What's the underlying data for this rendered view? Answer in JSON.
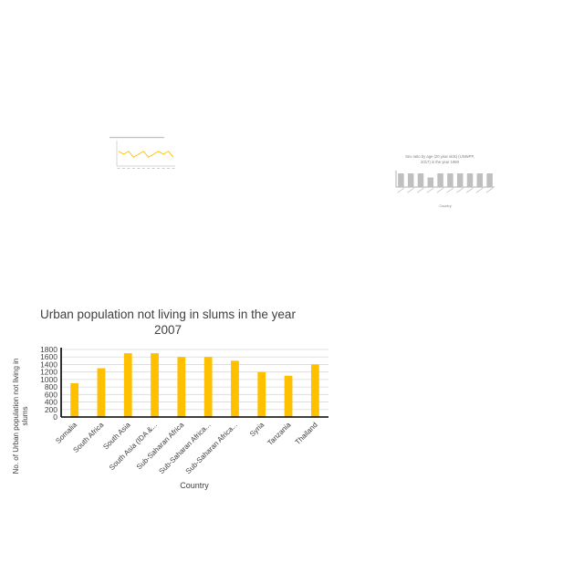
{
  "chart_data": [
    {
      "id": "main",
      "type": "bar",
      "title": "Urban population not living in slums in the year 2007",
      "title_lines": [
        "Urban population not living in slums in the year",
        "2007"
      ],
      "xlabel": "Country",
      "ylabel_lines": [
        "No. of Urban population not living in",
        "slums"
      ],
      "categories": [
        "Somalia",
        "South Africa",
        "South Asia",
        "South Asia (IDA &...",
        "Sub-Saharan Africa",
        "Sub-Saharan Africa...",
        "Sub-Saharan Africa...",
        "Syria",
        "Tanzania",
        "Thailand"
      ],
      "values": [
        900,
        1300,
        1700,
        1700,
        1600,
        1600,
        1500,
        1200,
        1100,
        1400
      ],
      "yticks": [
        0,
        200,
        400,
        600,
        800,
        1000,
        1200,
        1400,
        1600,
        1800
      ],
      "ylim": [
        0,
        1800
      ],
      "grid": true,
      "color": "#FFC000"
    },
    {
      "id": "thumb-line",
      "type": "line",
      "title": "",
      "values": [
        5,
        4,
        5,
        3,
        4,
        5,
        3,
        4,
        5,
        4,
        5,
        3
      ],
      "ylim": [
        0,
        8
      ],
      "color": "#FFC000"
    },
    {
      "id": "thumb-bar",
      "type": "bar",
      "title_lines": [
        "Sex ratio by age (20 year olds) (UNWPP,",
        "2017) in the year 1960"
      ],
      "xlabel": "Country",
      "values": [
        100,
        100,
        100,
        70,
        100,
        100,
        100,
        100,
        100,
        100
      ],
      "ylim": [
        0,
        120
      ],
      "color": "#BFBFBF"
    }
  ]
}
